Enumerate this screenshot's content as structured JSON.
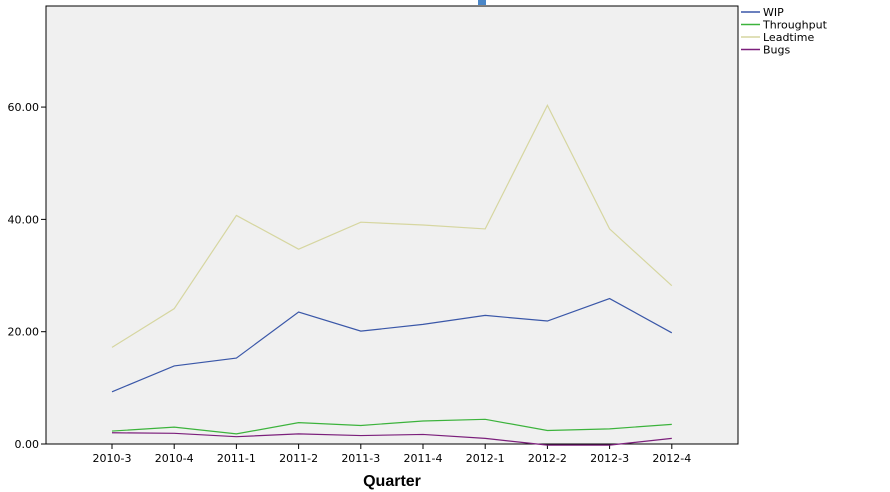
{
  "chart_data": {
    "type": "line",
    "xlabel": "Quarter",
    "ylabel": "",
    "categories": [
      "2010-3",
      "2010-4",
      "2011-1",
      "2011-2",
      "2011-3",
      "2011-4",
      "2012-1",
      "2012-2",
      "2012-3",
      "2012-4"
    ],
    "ylim": [
      0,
      78
    ],
    "yticks": [
      0,
      20,
      40,
      60
    ],
    "ytick_labels": [
      "0.00",
      "20.00",
      "40.00",
      "60.00"
    ],
    "grid": false,
    "legend_position": "top-right outside",
    "series": [
      {
        "name": "WIP",
        "color": "#3a57a8",
        "values": [
          9.3,
          13.9,
          15.3,
          23.5,
          20.1,
          21.3,
          22.9,
          21.9,
          25.9,
          19.8
        ]
      },
      {
        "name": "Throughput",
        "color": "#3cb33c",
        "values": [
          2.3,
          3.0,
          1.8,
          3.8,
          3.3,
          4.1,
          4.4,
          2.4,
          2.7,
          3.5
        ]
      },
      {
        "name": "Leadtime",
        "color": "#d6d6a0",
        "values": [
          17.2,
          24.1,
          40.7,
          34.7,
          39.5,
          39.0,
          38.3,
          60.3,
          38.3,
          28.2
        ]
      },
      {
        "name": "Bugs",
        "color": "#7b1f7b",
        "values": [
          2.0,
          1.9,
          1.3,
          1.8,
          1.5,
          1.7,
          1.0,
          -0.2,
          -0.2,
          1.0
        ]
      }
    ]
  }
}
